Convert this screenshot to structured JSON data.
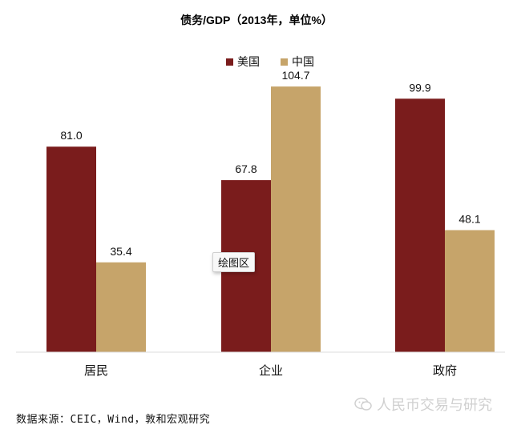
{
  "chart_data": {
    "type": "bar",
    "title": "债务/GDP（2013年，单位%）",
    "categories": [
      "居民",
      "企业",
      "政府"
    ],
    "series": [
      {
        "name": "美国",
        "color": "#7a1c1c",
        "values": [
          81.0,
          67.8,
          99.9
        ],
        "labels": [
          "81.0",
          "67.8",
          "99.9"
        ]
      },
      {
        "name": "中国",
        "color": "#c6a46a",
        "values": [
          35.4,
          104.7,
          48.1
        ],
        "labels": [
          "35.4",
          "104.7",
          "48.1"
        ]
      }
    ],
    "ylim": [
      0,
      110
    ],
    "legend_position": "top-center",
    "grid": false
  },
  "tooltip": {
    "text": "绘图区"
  },
  "source": {
    "text": "数据来源：CEIC，Wind，敦和宏观研究"
  },
  "watermark": {
    "text": "人民币交易与研究"
  }
}
